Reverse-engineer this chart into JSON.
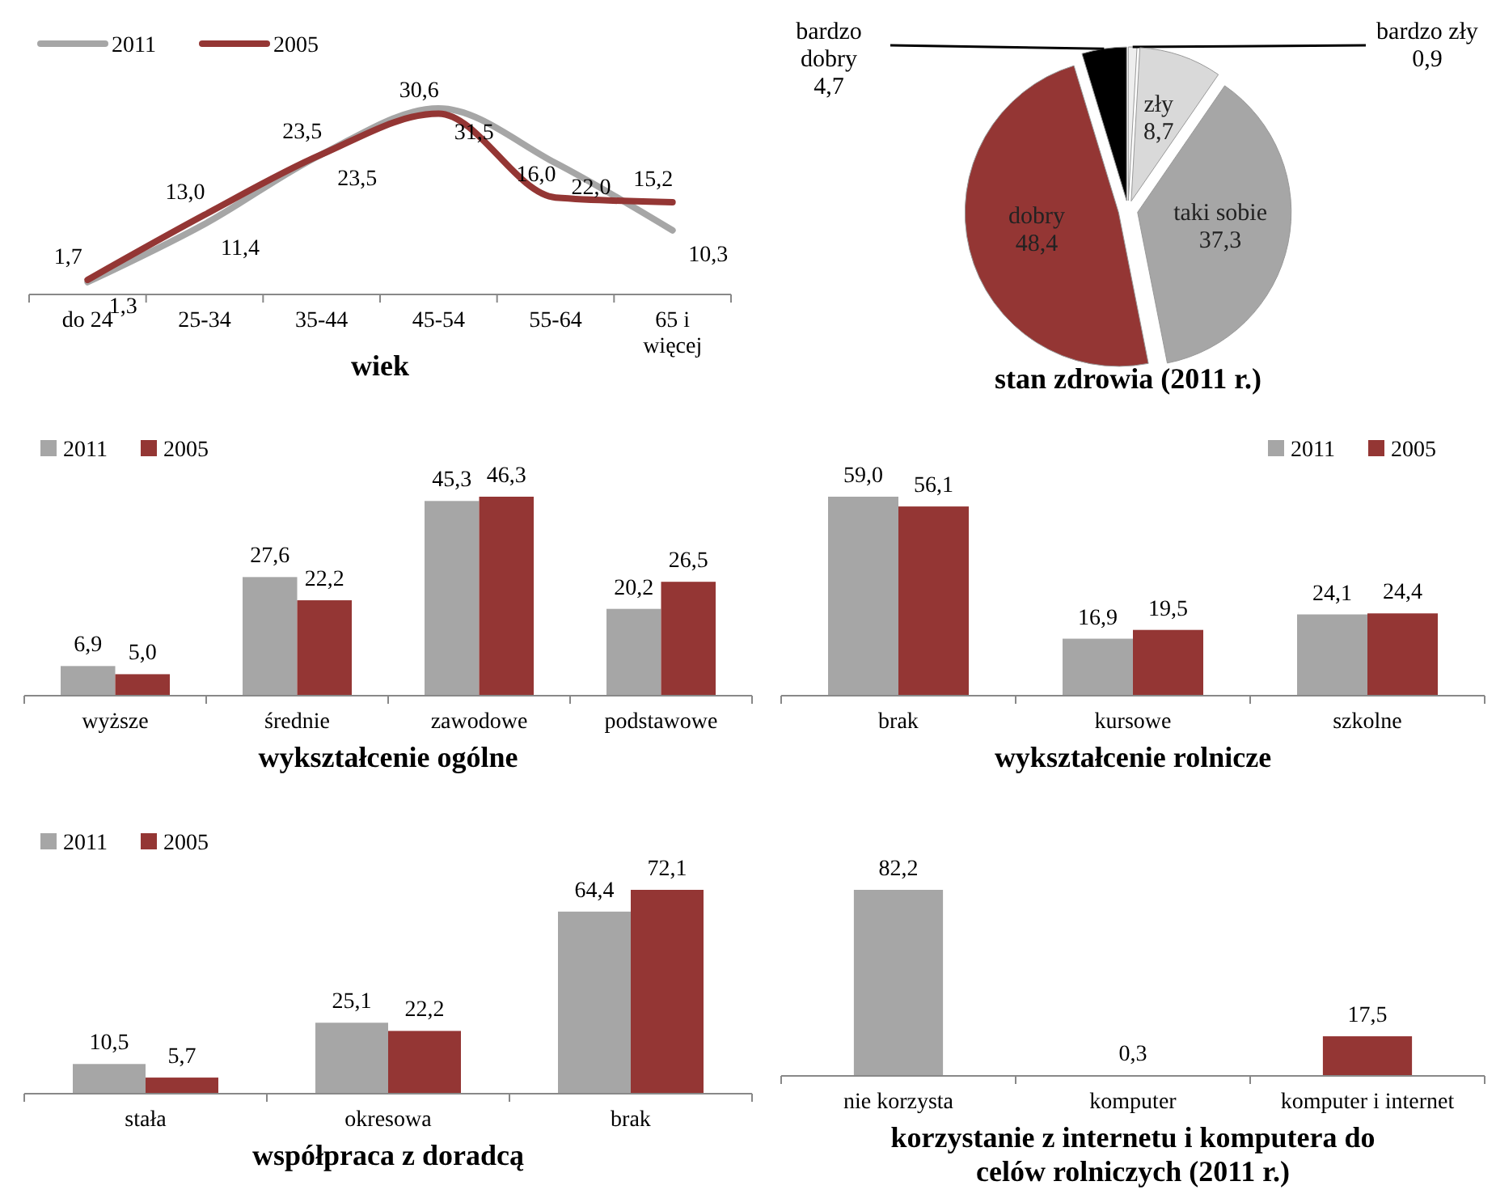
{
  "chart_data": [
    {
      "type": "line",
      "xlabel": "wiek",
      "categories": [
        "do 24",
        "25-34",
        "35-44",
        "45-54",
        "55-64",
        "65 i więcej"
      ],
      "series": [
        {
          "name": "2011",
          "color": "#a6a6a6",
          "values": [
            1.3,
            11.4,
            23.5,
            31.5,
            22.0,
            10.3
          ],
          "value_labels": [
            "1,3",
            "11,4",
            "23,5",
            "31,5",
            "22,0",
            "10,3"
          ]
        },
        {
          "name": "2005",
          "color": "#943634",
          "values": [
            1.7,
            13.0,
            23.5,
            30.6,
            16.0,
            15.2
          ],
          "value_labels": [
            "1,7",
            "13,0",
            "23,5",
            "30,6",
            "16,0",
            "15,2"
          ]
        }
      ],
      "legend": "top left",
      "marker": "none"
    },
    {
      "type": "pie",
      "title": "stan zdrowia (2011 r.)",
      "categories": [
        "bardzo zły",
        "zły",
        "taki sobie",
        "dobry",
        "bardzo dobry"
      ],
      "values": [
        0.9,
        8.7,
        37.3,
        48.4,
        4.7
      ],
      "value_labels": [
        "0,9",
        "8,7",
        "37,3",
        "48,4",
        "4,7"
      ],
      "colors": [
        "#eeeeee",
        "#d9d9d9",
        "#a6a6a6",
        "#943634",
        "#000000"
      ]
    },
    {
      "type": "bar",
      "xlabel": "wykształcenie ogólne",
      "categories": [
        "wyższe",
        "średnie",
        "zawodowe",
        "podstawowe"
      ],
      "series": [
        {
          "name": "2011",
          "color": "#a6a6a6",
          "values": [
            6.9,
            27.6,
            45.3,
            20.2
          ],
          "value_labels": [
            "6,9",
            "27,6",
            "45,3",
            "20,2"
          ]
        },
        {
          "name": "2005",
          "color": "#943634",
          "values": [
            5.0,
            22.2,
            46.3,
            26.5
          ],
          "value_labels": [
            "5,0",
            "22,2",
            "46,3",
            "26,5"
          ]
        }
      ],
      "legend": "top left"
    },
    {
      "type": "bar",
      "xlabel": "wykształcenie rolnicze",
      "categories": [
        "brak",
        "kursowe",
        "szkolne"
      ],
      "series": [
        {
          "name": "2011",
          "color": "#a6a6a6",
          "values": [
            59.0,
            16.9,
            24.1
          ],
          "value_labels": [
            "59,0",
            "16,9",
            "24,1"
          ]
        },
        {
          "name": "2005",
          "color": "#943634",
          "values": [
            56.1,
            19.5,
            24.4
          ],
          "value_labels": [
            "56,1",
            "19,5",
            "24,4"
          ]
        }
      ],
      "legend": "top right"
    },
    {
      "type": "bar",
      "xlabel": "współpraca z doradcą",
      "categories": [
        "stała",
        "okresowa",
        "brak"
      ],
      "series": [
        {
          "name": "2011",
          "color": "#a6a6a6",
          "values": [
            10.5,
            25.1,
            64.4
          ],
          "value_labels": [
            "10,5",
            "25,1",
            "64,4"
          ]
        },
        {
          "name": "2005",
          "color": "#943634",
          "values": [
            5.7,
            22.2,
            72.1
          ],
          "value_labels": [
            "5,7",
            "22,2",
            "72,1"
          ]
        }
      ],
      "legend": "top left"
    },
    {
      "type": "bar",
      "xlabel": "korzystanie z internetu i komputera do celów rolniczych (2011 r.)",
      "categories": [
        "nie korzysta",
        "komputer",
        "komputer i internet"
      ],
      "values": [
        82.2,
        0.3,
        17.5
      ],
      "value_labels": [
        "82,2",
        "0,3",
        "17,5"
      ],
      "colors": [
        "#a6a6a6",
        "#a6a6a6",
        "#943634"
      ]
    }
  ]
}
